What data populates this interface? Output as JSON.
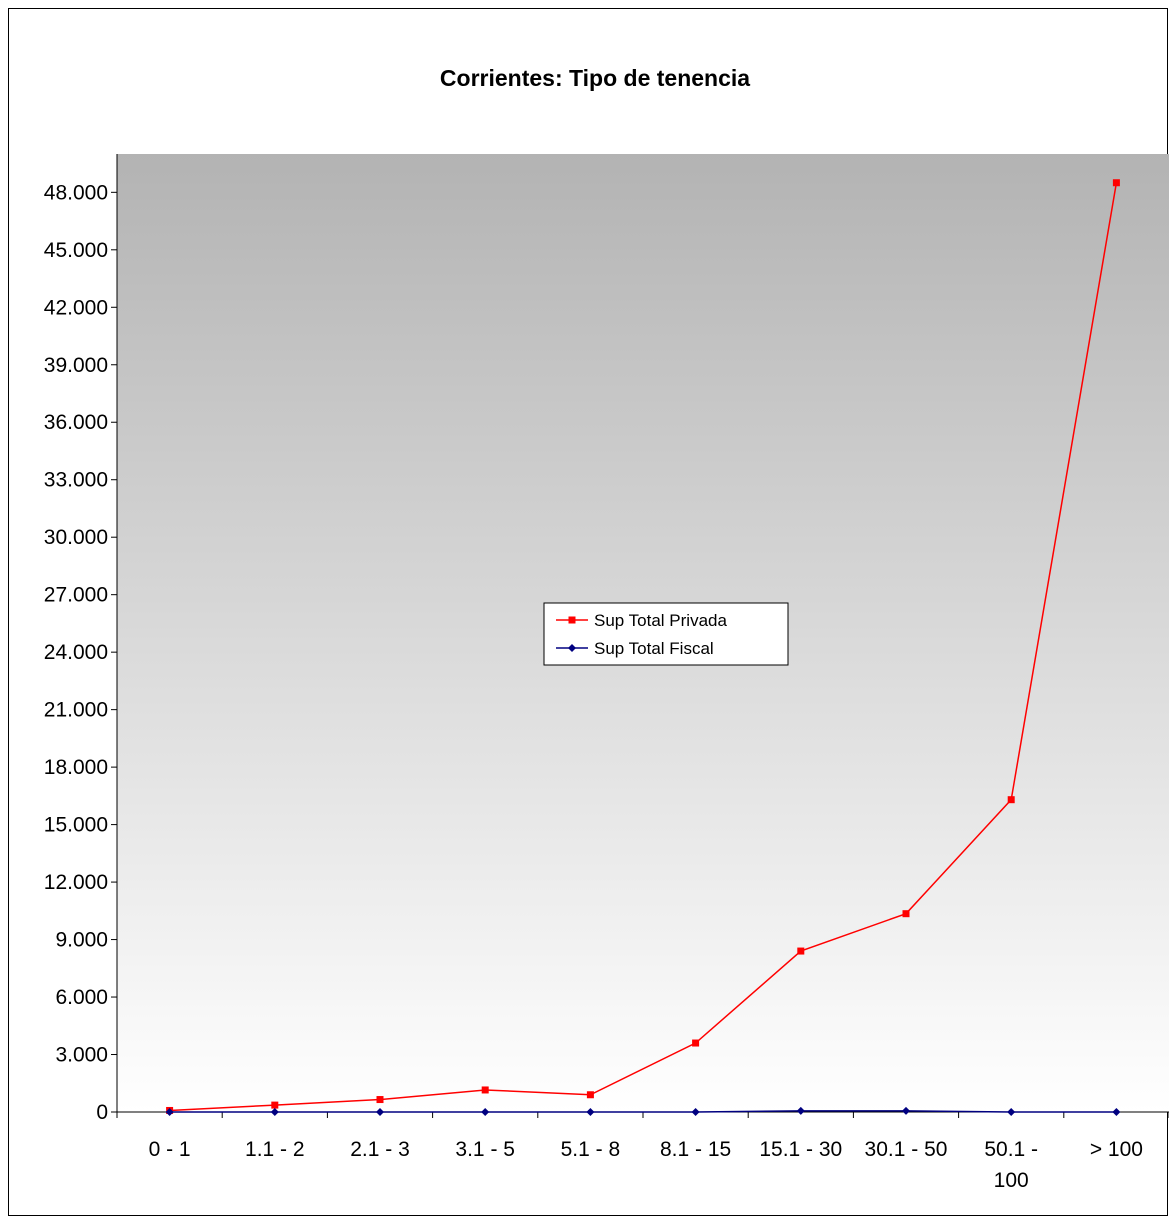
{
  "chart_data": {
    "type": "line",
    "title": "Corrientes: Tipo de tenencia",
    "categories": [
      "0 - 1",
      "1.1 - 2",
      "2.1 - 3",
      "3.1 - 5",
      "5.1 - 8",
      "8.1 - 15",
      "15.1 - 30",
      "30.1 - 50",
      "50.1 - 100",
      "> 100"
    ],
    "category_lines": [
      [
        "0 - 1"
      ],
      [
        "1.1 - 2"
      ],
      [
        "2.1 - 3"
      ],
      [
        "3.1 - 5"
      ],
      [
        "5.1 - 8"
      ],
      [
        "8.1 - 15"
      ],
      [
        "15.1 - 30"
      ],
      [
        "30.1 - 50"
      ],
      [
        "50.1 -",
        "100"
      ],
      [
        "> 100"
      ]
    ],
    "ylim": [
      0,
      50000
    ],
    "yticks": [
      0,
      3000,
      6000,
      9000,
      12000,
      15000,
      18000,
      21000,
      24000,
      27000,
      30000,
      33000,
      36000,
      39000,
      42000,
      45000,
      48000
    ],
    "ytick_labels": [
      "0",
      "3.000",
      "6.000",
      "9.000",
      "12.000",
      "15.000",
      "18.000",
      "21.000",
      "24.000",
      "27.000",
      "30.000",
      "33.000",
      "36.000",
      "39.000",
      "42.000",
      "45.000",
      "48.000"
    ],
    "series": [
      {
        "name": "Sup Total Privada",
        "color": "#ff0000",
        "marker": "square",
        "values": [
          80,
          360,
          650,
          1150,
          900,
          3600,
          8400,
          10350,
          16300,
          48500
        ]
      },
      {
        "name": "Sup Total Fiscal",
        "color": "#000080",
        "marker": "diamond",
        "values": [
          0,
          0,
          0,
          0,
          0,
          0,
          60,
          60,
          0,
          0
        ]
      }
    ],
    "legend_position": "center",
    "plot_background": "gradient gray to white",
    "grid": false
  }
}
